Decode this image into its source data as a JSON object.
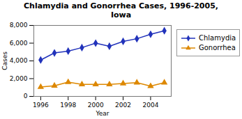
{
  "chart_data": {
    "type": "line",
    "title": "Chlamydia and Gonorrhea Cases, 1996-2005,\nIowa",
    "xlabel": "Year",
    "ylabel": "Cases",
    "x": [
      1996,
      1997,
      1998,
      1999,
      2000,
      2001,
      2002,
      2003,
      2004,
      2005
    ],
    "series": [
      {
        "name": "Chlamydia",
        "color": "#2233bb",
        "marker": "diamond",
        "values": [
          4100,
          4900,
          5100,
          5500,
          6000,
          5650,
          6200,
          6500,
          7000,
          7400
        ]
      },
      {
        "name": "Gonorrhea",
        "color": "#dd8800",
        "marker": "triangle",
        "values": [
          1050,
          1200,
          1600,
          1350,
          1350,
          1350,
          1450,
          1550,
          1150,
          1550
        ]
      }
    ],
    "xlim": [
      1995.5,
      2005.5
    ],
    "xticks": [
      1996,
      1998,
      2000,
      2002,
      2004
    ],
    "ylim": [
      0,
      8000
    ],
    "yticks": [
      0,
      {
        "value": 2000,
        "label": "2,000"
      },
      {
        "value": 4000,
        "label": "4,000"
      },
      {
        "value": 6000,
        "label": "6,000"
      },
      {
        "value": 8000,
        "label": "8,000"
      }
    ],
    "grid": false,
    "legend": "right"
  }
}
